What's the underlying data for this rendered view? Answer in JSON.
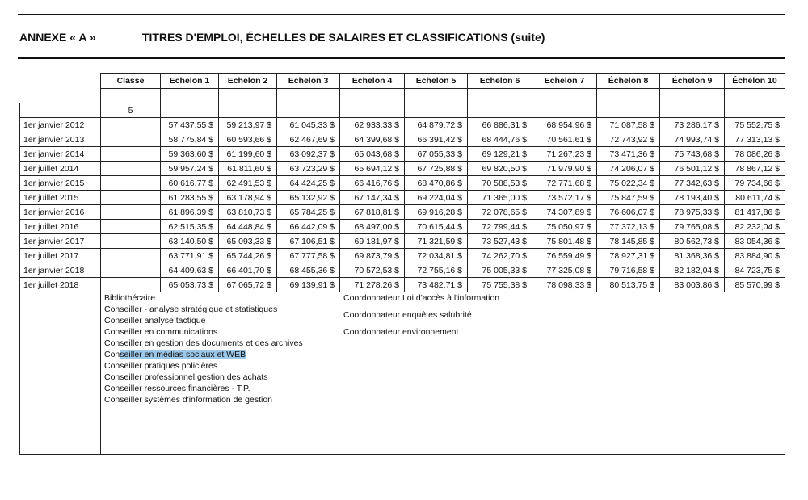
{
  "header": {
    "annex": "ANNEXE « A »",
    "title": "TITRES D'EMPLOI, ÉCHELLES DE SALAIRES ET CLASSIFICATIONS (suite)"
  },
  "table": {
    "columns": [
      "Classe",
      "Echelon 1",
      "Echelon 2",
      "Echelon 3",
      "Echelon 4",
      "Echelon 5",
      "Echelon 6",
      "Echelon 7",
      "Échelon 8",
      "Échelon 9",
      "Échelon 10"
    ],
    "classe": "5",
    "rows": [
      {
        "date": "1er janvier 2012",
        "values": [
          "57 437,55 $",
          "59 213,97 $",
          "61 045,33 $",
          "62 933,33 $",
          "64 879,72 $",
          "66 886,31 $",
          "68 954,96 $",
          "71 087,58 $",
          "73 286,17 $",
          "75 552,75 $"
        ]
      },
      {
        "date": "1er janvier 2013",
        "values": [
          "58 775,84 $",
          "60 593,66 $",
          "62 467,69 $",
          "64 399,68 $",
          "66 391,42 $",
          "68 444,76 $",
          "70 561,61 $",
          "72 743,92 $",
          "74 993,74 $",
          "77 313,13 $"
        ]
      },
      {
        "date": "1er janvier 2014",
        "values": [
          "59 363,60 $",
          "61 199,60 $",
          "63 092,37 $",
          "65 043,68 $",
          "67 055,33 $",
          "69 129,21 $",
          "71 267;23 $",
          "73 471,36 $",
          "75 743,68 $",
          "78 086,26 $"
        ]
      },
      {
        "date": "1er juillet 2014",
        "values": [
          "59 957,24 $",
          "61 811,60 $",
          "63 723,29 $",
          "65 694,12 $",
          "67 725,88 $",
          "69 820,50 $",
          "71 979,90 $",
          "74 206,07 $",
          "76 501,12 $",
          "78 867,12 $"
        ]
      },
      {
        "date": "1er janvier 2015",
        "values": [
          "60 616,77 $",
          "62 491,53 $",
          "64 424,25 $",
          "66 416,76 $",
          "68 470,86 $",
          "70 588,53 $",
          "72 771,68 $",
          "75 022,34 $",
          "77 342,63 $",
          "79 734,66 $"
        ]
      },
      {
        "date": "1er juillet 2015",
        "values": [
          "61 283,55 $",
          "63 178,94 $",
          "65 132,92 $",
          "67 147,34 $",
          "69 224,04 $",
          "71 365,00 $",
          "73 572,17 $",
          "75 847,59 $",
          "78 193,40 $",
          "80 611,74 $"
        ]
      },
      {
        "date": "1er janvier 2016",
        "values": [
          "61 896,39 $",
          "63 810,73 $",
          "65 784,25 $",
          "67 818,81 $",
          "69 916,28 $",
          "72 078,65 $",
          "74 307,89 $",
          "76 606,07 $",
          "78 975,33 $",
          "81 417,86 $"
        ]
      },
      {
        "date": "1er juillet 2016",
        "values": [
          "62 515,35 $",
          "64 448,84 $",
          "66 442,09 $",
          "68 497,00 $",
          "70 615,44 $",
          "72 799,44 $",
          "75 050,97 $",
          "77 372,13 $",
          "79 765,08 $",
          "82 232,04 $"
        ]
      },
      {
        "date": "1er janvier 2017",
        "values": [
          "63 140,50 $",
          "65 093,33 $",
          "67 106,51 $",
          "69 181,97 $",
          "71 321,59 $",
          "73 527,43 $",
          "75 801,48 $",
          "78 145,85 $",
          "80 562,73 $",
          "83 054,36 $"
        ]
      },
      {
        "date": "1er juillet 2017",
        "values": [
          "63 771,91 $",
          "65 744,26 $",
          "67 777,58 $",
          "69 873,79 $",
          "72 034,81 $",
          "74 262,70 $",
          "76 559,49 $",
          "78 927,31 $",
          "81 368,36 $",
          "83 884,90 $"
        ]
      },
      {
        "date": "1er janvier 2018",
        "values": [
          "64 409,63 $",
          "66 401,70 $",
          "68 455,36 $",
          "70 572,53 $",
          "72 755,16 $",
          "75 005,33 $",
          "77 325,08 $",
          "79 716,58 $",
          "82 182,04 $",
          "84 723,75 $"
        ]
      },
      {
        "date": "1er juillet 2018",
        "values": [
          "65 053,73 $",
          "67 065,72 $",
          "69 139,91 $",
          "71 278,26 $",
          "73 482,71 $",
          "75 755,38 $",
          "78 098,33 $",
          "80 513,75 $",
          "83 003,86 $",
          "85 570,99 $"
        ]
      }
    ]
  },
  "jobs": {
    "left": [
      "Bibliothécaire",
      "Conseiller - analyse stratégique et statistiques",
      "Conseiller analyse tactique",
      "Conseiller en communications",
      "Conseiller en gestion des documents et des archives",
      "Conseiller pratiques policières",
      "Conseiller professionnel gestion des achats",
      "Conseiller ressources financières - T.P.",
      "Conseiller systèmes d'information de gestion"
    ],
    "highlighted_prefix": "Con",
    "highlighted_text": "seiller en médias sociaux et WEB",
    "right": [
      "Coordonnateur Loi d'accès à l'information",
      "Coordonnateur enquêtes salubrité",
      "Coordonnateur environnement"
    ]
  },
  "highlight_color": "#9cc8ea"
}
